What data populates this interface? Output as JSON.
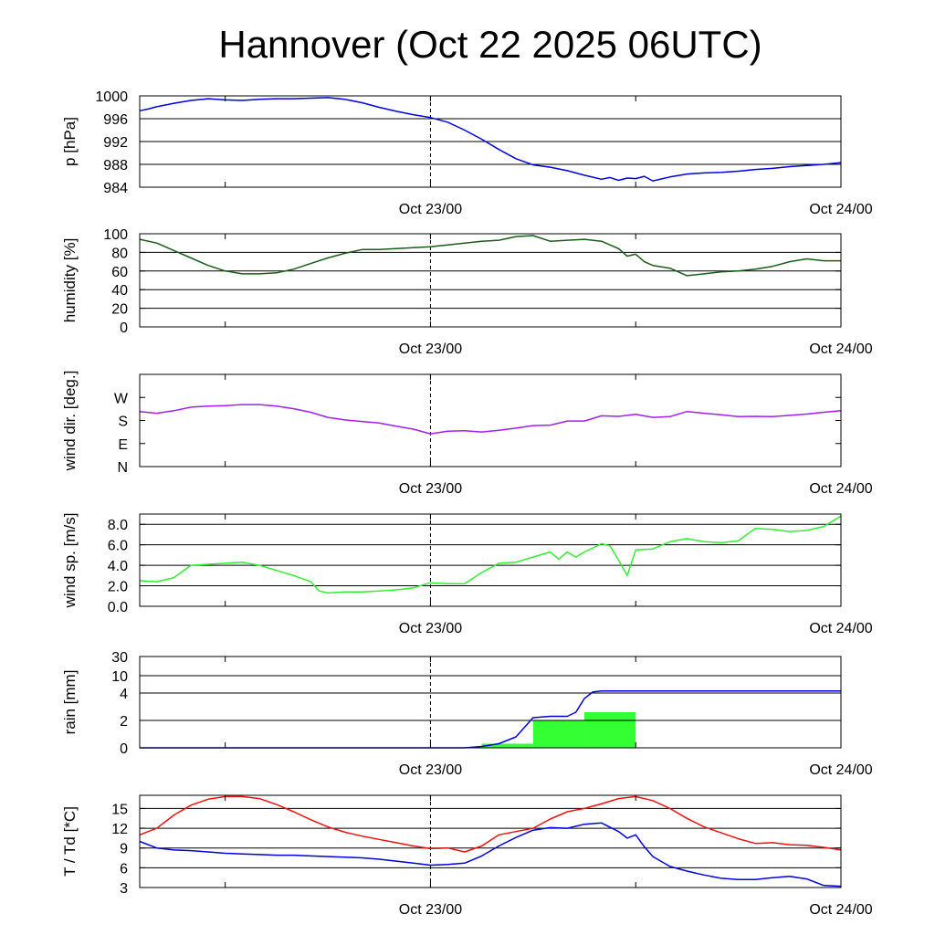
{
  "page": {
    "title": "Hannover (Oct 22 2025 06UTC)"
  },
  "chart_data": [
    {
      "id": "pressure",
      "type": "line",
      "ylabel": "p [hPa]",
      "x_range_hours": [
        -17,
        24
      ],
      "x_tick_labels": [
        {
          "hour": 0,
          "label": "Oct 23/00"
        },
        {
          "hour": 24,
          "label": "Oct 24/00"
        }
      ],
      "ylim": [
        984,
        1000
      ],
      "yticks": [
        984,
        988,
        992,
        996,
        1000
      ],
      "ytick_labels": [
        "984",
        "988",
        "992",
        "996",
        "1000"
      ],
      "hgrid": [
        984,
        988,
        992,
        996,
        1000
      ],
      "series": [
        {
          "color": "#0000dd",
          "x": [
            -17,
            -16.5,
            -16,
            -15,
            -14,
            -13,
            -12,
            -11,
            -10,
            -9,
            -8,
            -7,
            -6,
            -5,
            -4,
            -3,
            -2,
            -1,
            0,
            1,
            2,
            3,
            4,
            5,
            6,
            7,
            8,
            9,
            10,
            10.5,
            11,
            11.5,
            12,
            12.5,
            13,
            14,
            15,
            16,
            17,
            18,
            19,
            20,
            21,
            22,
            23,
            24
          ],
          "y": [
            997.4,
            997.7,
            998.1,
            998.7,
            999.2,
            999.5,
            999.3,
            999.2,
            999.4,
            999.5,
            999.5,
            999.6,
            999.7,
            999.4,
            998.8,
            998.0,
            997.3,
            996.7,
            996.2,
            995.4,
            994.0,
            992.4,
            990.6,
            989.0,
            987.9,
            987.5,
            986.9,
            986.1,
            985.4,
            985.7,
            985.2,
            985.6,
            985.5,
            985.9,
            985.1,
            985.8,
            986.3,
            986.5,
            986.6,
            986.8,
            987.1,
            987.3,
            987.6,
            987.8,
            988.0,
            988.3
          ]
        }
      ]
    },
    {
      "id": "humidity",
      "type": "line",
      "ylabel": "humidity [%]",
      "x_range_hours": [
        -17,
        24
      ],
      "x_tick_labels": [
        {
          "hour": 0,
          "label": "Oct 23/00"
        },
        {
          "hour": 24,
          "label": "Oct 24/00"
        }
      ],
      "ylim": [
        0,
        100
      ],
      "yticks": [
        0,
        20,
        40,
        60,
        80,
        100
      ],
      "ytick_labels": [
        "0",
        "20",
        "40",
        "60",
        "80",
        "100"
      ],
      "hgrid": [
        20,
        40,
        60,
        80,
        100
      ],
      "series": [
        {
          "color": "#1a5c1a",
          "x": [
            -17,
            -16,
            -15,
            -14,
            -13,
            -12,
            -11,
            -10,
            -9,
            -8,
            -7,
            -6,
            -5,
            -4,
            -3,
            -2,
            -1,
            0,
            1,
            2,
            3,
            4,
            5,
            6,
            7,
            8,
            9,
            10,
            11,
            11.5,
            12,
            12.5,
            13,
            14,
            15,
            16,
            17,
            18,
            19,
            20,
            21,
            22,
            23,
            24
          ],
          "y": [
            94,
            90,
            82,
            74,
            66,
            60,
            57,
            57,
            58,
            62,
            68,
            74,
            79,
            83,
            83,
            84,
            85,
            86,
            88,
            90,
            92,
            93,
            97,
            98,
            92,
            93,
            94,
            92,
            84,
            76,
            78,
            70,
            66,
            63,
            55,
            57,
            59,
            60,
            62,
            65,
            70,
            73,
            71,
            71
          ]
        }
      ]
    },
    {
      "id": "wind-direction",
      "type": "line",
      "ylabel": "wind dir. [deg.]",
      "x_range_hours": [
        -17,
        24
      ],
      "x_tick_labels": [
        {
          "hour": 0,
          "label": "Oct 23/00"
        },
        {
          "hour": 24,
          "label": "Oct 24/00"
        }
      ],
      "ylim": [
        0,
        360
      ],
      "yticks": [
        0,
        90,
        180,
        270
      ],
      "ytick_labels": [
        "N",
        "E",
        "S",
        "W"
      ],
      "hgrid": [],
      "series": [
        {
          "color": "#a020f0",
          "x": [
            -17,
            -16,
            -15,
            -14,
            -13,
            -12,
            -11,
            -10,
            -9,
            -8,
            -7,
            -6,
            -5,
            -4,
            -3,
            -2,
            -1,
            0,
            1,
            2,
            3,
            4,
            5,
            6,
            7,
            8,
            9,
            10,
            11,
            12,
            13,
            14,
            15,
            16,
            17,
            18,
            19,
            20,
            21,
            22,
            23,
            24
          ],
          "y": [
            215,
            208,
            218,
            232,
            236,
            238,
            242,
            242,
            236,
            226,
            212,
            192,
            182,
            176,
            170,
            158,
            146,
            128,
            138,
            140,
            135,
            142,
            150,
            160,
            162,
            178,
            178,
            198,
            196,
            204,
            192,
            195,
            215,
            208,
            202,
            195,
            196,
            195,
            200,
            205,
            212,
            218
          ]
        }
      ]
    },
    {
      "id": "wind-speed",
      "type": "line",
      "ylabel": "wind sp. [m/s]",
      "x_range_hours": [
        -17,
        24
      ],
      "x_tick_labels": [
        {
          "hour": 0,
          "label": "Oct 23/00"
        },
        {
          "hour": 24,
          "label": "Oct 24/00"
        }
      ],
      "ylim": [
        0,
        9
      ],
      "yticks": [
        0,
        2,
        4,
        6,
        8
      ],
      "ytick_labels": [
        "0.0",
        "2.0",
        "4.0",
        "6.0",
        "8.0"
      ],
      "hgrid": [
        2,
        4,
        6,
        8
      ],
      "series": [
        {
          "color": "#33ee33",
          "x": [
            -17,
            -16,
            -15,
            -14,
            -13,
            -12,
            -11,
            -10,
            -9,
            -8,
            -7,
            -6.5,
            -6,
            -5,
            -4,
            -3,
            -2,
            -1,
            0,
            1,
            2,
            3,
            4,
            5,
            6,
            7,
            7.5,
            8,
            8.5,
            9,
            10,
            10.5,
            11,
            11.5,
            12,
            13,
            14,
            15,
            16,
            17,
            18,
            19,
            20,
            21,
            22,
            23,
            24
          ],
          "y": [
            2.5,
            2.4,
            2.8,
            4.0,
            4.1,
            4.2,
            4.3,
            4.0,
            3.5,
            3.0,
            2.4,
            1.5,
            1.3,
            1.4,
            1.4,
            1.5,
            1.6,
            1.8,
            2.3,
            2.2,
            2.2,
            3.3,
            4.2,
            4.3,
            4.8,
            5.3,
            4.6,
            5.3,
            4.8,
            5.3,
            6.1,
            5.9,
            4.5,
            3.0,
            5.5,
            5.6,
            6.3,
            6.6,
            6.3,
            6.2,
            6.4,
            7.6,
            7.5,
            7.3,
            7.4,
            7.8,
            8.8
          ]
        }
      ]
    },
    {
      "id": "rain",
      "type": "bar",
      "ylabel": "rain [mm]",
      "x_range_hours": [
        -17,
        24
      ],
      "x_tick_labels": [
        {
          "hour": 0,
          "label": "Oct 23/00"
        },
        {
          "hour": 24,
          "label": "Oct 24/00"
        }
      ],
      "ylim": [
        0,
        30
      ],
      "yticks": [
        0,
        2,
        4,
        10,
        30
      ],
      "ytick_labels": [
        "0",
        "2",
        "4",
        "10",
        "30"
      ],
      "hgrid": [
        2,
        4,
        10,
        30
      ],
      "bars": {
        "color": "#33ff33",
        "x_start": [
          3,
          6,
          9
        ],
        "x_end": [
          6,
          9,
          12
        ],
        "values": [
          0.3,
          2.0,
          2.6
        ]
      },
      "series": [
        {
          "color": "#0000dd",
          "x": [
            -17,
            2,
            3,
            4,
            5,
            6,
            7,
            8,
            8.5,
            9,
            9.5,
            10,
            24
          ],
          "y": [
            0,
            0,
            0.1,
            0.3,
            0.8,
            2.2,
            2.3,
            2.3,
            2.6,
            3.6,
            4.4,
            4.7,
            4.7
          ]
        }
      ]
    },
    {
      "id": "temperature-dewpoint",
      "type": "line",
      "ylabel": "T / Td [*C]",
      "x_range_hours": [
        -17,
        24
      ],
      "x_tick_labels": [
        {
          "hour": 0,
          "label": "Oct 23/00"
        },
        {
          "hour": 24,
          "label": "Oct 24/00"
        }
      ],
      "ylim": [
        3,
        17
      ],
      "yticks": [
        3,
        6,
        9,
        12,
        15
      ],
      "ytick_labels": [
        "3",
        "6",
        "9",
        "12",
        "15"
      ],
      "hgrid": [
        6,
        9,
        12,
        15
      ],
      "series": [
        {
          "color": "#ee1111",
          "x": [
            -17,
            -16,
            -15,
            -14,
            -13,
            -12,
            -11,
            -10,
            -9,
            -8,
            -7,
            -6,
            -5,
            -4,
            -3,
            -2,
            -1,
            0,
            1,
            2,
            3,
            4,
            5,
            6,
            7,
            8,
            9,
            10,
            11,
            12,
            13,
            14,
            15,
            16,
            17,
            18,
            19,
            20,
            21,
            22,
            23,
            24
          ],
          "y": [
            11,
            12,
            14,
            15.5,
            16.4,
            16.8,
            16.8,
            16.5,
            15.6,
            14.5,
            13.3,
            12.2,
            11.4,
            10.8,
            10.3,
            9.8,
            9.3,
            8.9,
            9.0,
            8.4,
            9.3,
            11,
            11.5,
            12,
            13.4,
            14.5,
            15,
            15.7,
            16.5,
            16.8,
            16.2,
            15,
            13.5,
            12.2,
            11.3,
            10.4,
            9.7,
            9.8,
            9.5,
            9.4,
            9.1,
            8.7
          ]
        },
        {
          "color": "#0000dd",
          "x": [
            -17,
            -16,
            -15,
            -14,
            -13,
            -12,
            -11,
            -10,
            -9,
            -8,
            -7,
            -6,
            -5,
            -4,
            -3,
            -2,
            -1,
            0,
            1,
            2,
            3,
            4,
            5,
            6,
            7,
            8,
            9,
            10,
            11,
            11.5,
            12,
            12.5,
            13,
            14,
            15,
            16,
            17,
            18,
            19,
            20,
            21,
            22,
            23,
            24
          ],
          "y": [
            10,
            9,
            8.7,
            8.6,
            8.4,
            8.2,
            8.1,
            8.0,
            7.9,
            7.9,
            7.8,
            7.7,
            7.6,
            7.5,
            7.3,
            7.0,
            6.7,
            6.4,
            6.5,
            6.7,
            7.8,
            9.3,
            10.6,
            11.7,
            12.1,
            12.0,
            12.6,
            12.8,
            11.5,
            10.5,
            11.0,
            9.2,
            7.7,
            6.2,
            5.5,
            4.9,
            4.4,
            4.2,
            4.2,
            4.5,
            4.7,
            4.3,
            3.3,
            3.2
          ]
        }
      ]
    }
  ]
}
